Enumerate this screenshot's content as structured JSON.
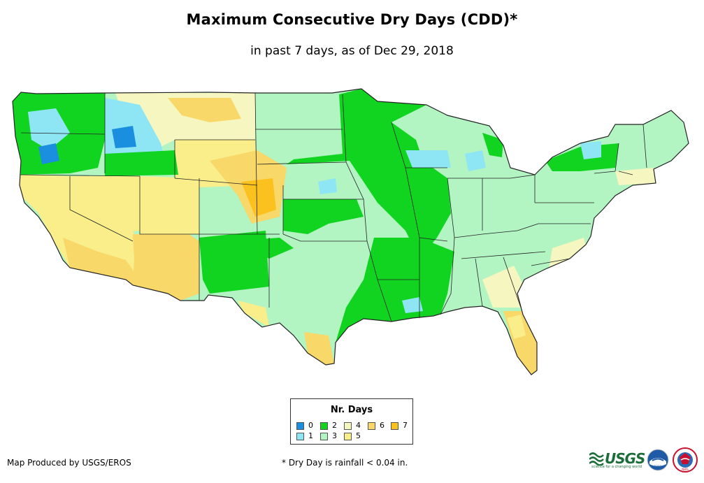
{
  "title": "Maximum Consecutive Dry Days (CDD)*",
  "subtitle": "in past 7 days, as of Dec 29, 2018",
  "legend": {
    "title": "Nr. Days",
    "items": [
      {
        "label": "0",
        "color": "#1a8fe0"
      },
      {
        "label": "1",
        "color": "#8ee6f4"
      },
      {
        "label": "2",
        "color": "#11d420"
      },
      {
        "label": "3",
        "color": "#b2f4c2"
      },
      {
        "label": "4",
        "color": "#f6f6c0"
      },
      {
        "label": "5",
        "color": "#f9ee8a"
      },
      {
        "label": "6",
        "color": "#f8d868"
      },
      {
        "label": "7",
        "color": "#fbc21f"
      }
    ]
  },
  "credit": "Map Produced by USGS/EROS",
  "footnote": "* Dry Day is rainfall < 0.04 in.",
  "logos": {
    "usgs": "USGS",
    "usgs_tagline": "science for a changing world",
    "noaa": "noaa",
    "nws": "NWS"
  },
  "colors": {
    "state_border": "#222222",
    "map_base": "#b2f4c2"
  }
}
